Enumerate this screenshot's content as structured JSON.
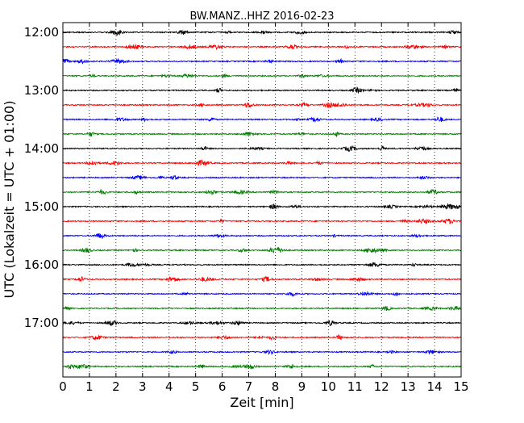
{
  "chart_data": {
    "type": "line",
    "title": "BW.MANZ..HHZ 2016-02-23",
    "xlabel": "Zeit  [min]",
    "ylabel": "UTC (Lokalzeit = UTC + 01:00)",
    "xlim": [
      0,
      15
    ],
    "x_ticks": [
      "0",
      "1",
      "2",
      "3",
      "4",
      "5",
      "6",
      "7",
      "8",
      "9",
      "10",
      "11",
      "12",
      "13",
      "14",
      "15"
    ],
    "y_ticks": [
      "12:00",
      "13:00",
      "14:00",
      "15:00",
      "16:00",
      "17:00"
    ],
    "y_start_time": "12:00",
    "trace_interval_minutes": 15,
    "grid": "vertical-dotted",
    "trace_colors": [
      "#000000",
      "#ff0000",
      "#0000ff",
      "#007f00"
    ],
    "traces": [
      {
        "start": "12:00"
      },
      {
        "start": "12:15"
      },
      {
        "start": "12:30"
      },
      {
        "start": "12:45"
      },
      {
        "start": "13:00"
      },
      {
        "start": "13:15"
      },
      {
        "start": "13:30"
      },
      {
        "start": "13:45"
      },
      {
        "start": "14:00"
      },
      {
        "start": "14:15"
      },
      {
        "start": "14:30"
      },
      {
        "start": "14:45"
      },
      {
        "start": "15:00"
      },
      {
        "start": "15:15"
      },
      {
        "start": "15:30"
      },
      {
        "start": "15:45"
      },
      {
        "start": "16:00"
      },
      {
        "start": "16:15"
      },
      {
        "start": "16:30"
      },
      {
        "start": "16:45"
      },
      {
        "start": "17:00"
      },
      {
        "start": "17:15"
      },
      {
        "start": "17:30"
      },
      {
        "start": "17:45"
      }
    ]
  }
}
